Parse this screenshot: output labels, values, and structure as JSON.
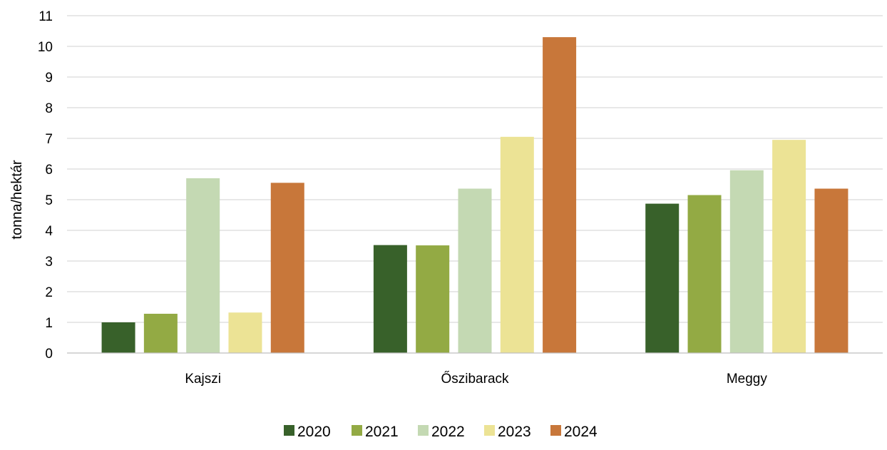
{
  "chart_data": {
    "type": "bar",
    "title": "",
    "xlabel": "",
    "ylabel": "tonna/hektár",
    "ylim": [
      0,
      11
    ],
    "yticks": [
      0,
      1,
      2,
      3,
      4,
      5,
      6,
      7,
      8,
      9,
      10,
      11
    ],
    "grid": true,
    "legend_position": "bottom",
    "categories": [
      "Kajszi",
      "Őszibarack",
      "Meggy"
    ],
    "series": [
      {
        "name": "2020",
        "color": "#38612a",
        "values": [
          1.0,
          3.52,
          4.87
        ]
      },
      {
        "name": "2021",
        "color": "#93aa44",
        "values": [
          1.28,
          3.51,
          5.15
        ]
      },
      {
        "name": "2022",
        "color": "#c4d9b3",
        "values": [
          5.7,
          5.36,
          5.96
        ]
      },
      {
        "name": "2023",
        "color": "#ece395",
        "values": [
          1.32,
          7.05,
          6.95
        ]
      },
      {
        "name": "2024",
        "color": "#c8773a",
        "values": [
          5.55,
          10.3,
          5.36
        ]
      }
    ]
  }
}
